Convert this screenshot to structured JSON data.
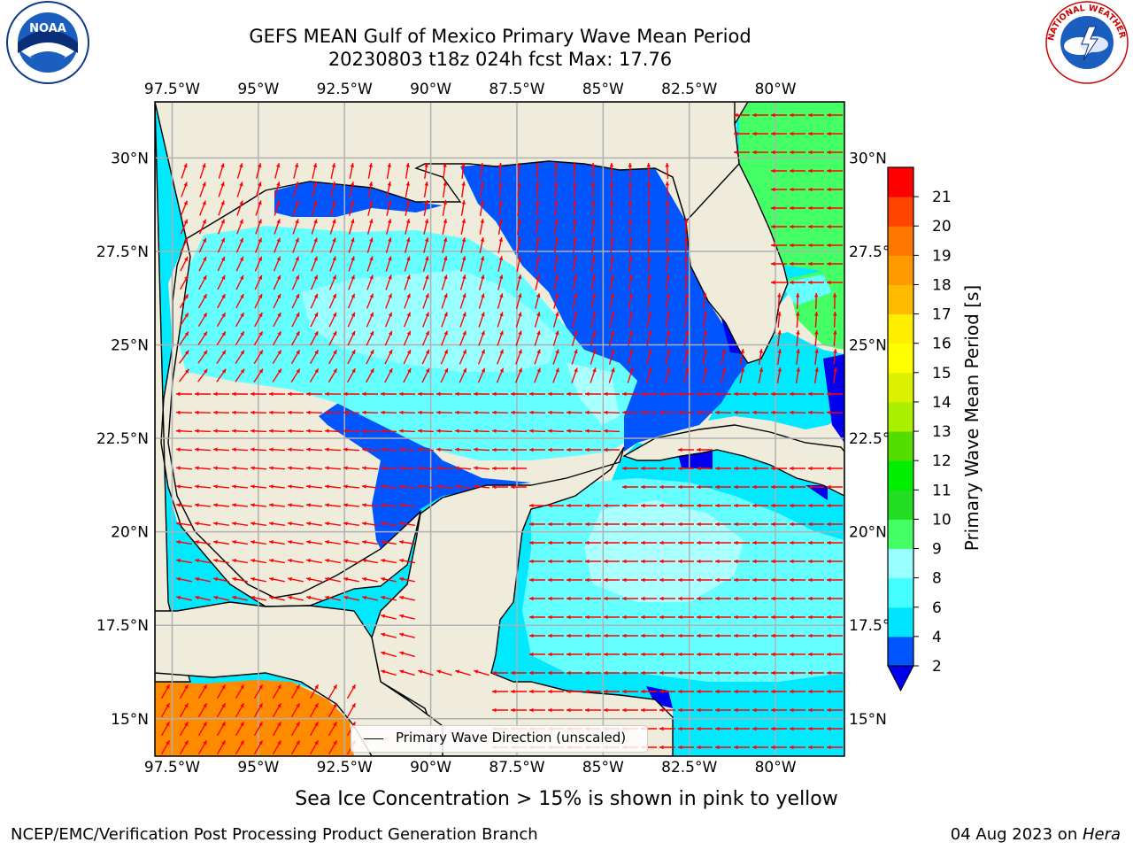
{
  "title": {
    "line1": "GEFS MEAN Gulf of Mexico Primary Wave Mean Period",
    "line2": "20230803 t18z 024h fcst   Max: 17.76"
  },
  "logos": {
    "left": "noaa-logo",
    "right": "national-weather-service-logo",
    "left_text": "NOAA",
    "right_text": "NATIONAL WEATHER SERVICE"
  },
  "axes": {
    "lon_labels": [
      "97.5°W",
      "95°W",
      "92.5°W",
      "90°W",
      "87.5°W",
      "85°W",
      "82.5°W",
      "80°W"
    ],
    "lat_labels_left": [
      "30°N",
      "27.5°N",
      "25°N",
      "22.5°N",
      "20°N",
      "17.5°N",
      "15°N"
    ],
    "lat_labels_right": [
      "30°N",
      "27.5°N",
      "25°N",
      "22.5°N",
      "20°N",
      "17.5°N",
      "15°N"
    ],
    "lon_range": [
      -98,
      -78
    ],
    "lat_range": [
      14,
      31.5
    ]
  },
  "colorbar": {
    "label": "Primary Wave Mean Period [s]",
    "ticks": [
      "2",
      "4",
      "6",
      "8",
      "9",
      "10",
      "11",
      "12",
      "13",
      "14",
      "15",
      "16",
      "17",
      "18",
      "19",
      "20",
      "21"
    ],
    "colors": [
      "#0055ff",
      "#00e5ff",
      "#44ffff",
      "#99ffff",
      "#44ff66",
      "#22dd22",
      "#00ee00",
      "#55dd00",
      "#aaee00",
      "#ddf000",
      "#ffff00",
      "#ffee00",
      "#ffbb00",
      "#ff9900",
      "#ff7700",
      "#ff4400",
      "#ff0000"
    ],
    "under_color": "#0000ee"
  },
  "colors": {
    "land": "#efecdc",
    "ocean_base": "#00ffff",
    "arrow": "#ff0000",
    "grid": "#b0b0b0"
  },
  "legend": {
    "label": "Primary Wave Direction (unscaled)"
  },
  "footer": {
    "note": "Sea Ice Concentration > 15% is shown in pink to yellow",
    "left": "NCEP/EMC/Verification Post Processing Product Generation Branch",
    "right_date": "04 Aug 2023 on ",
    "right_machine": "Hera"
  }
}
